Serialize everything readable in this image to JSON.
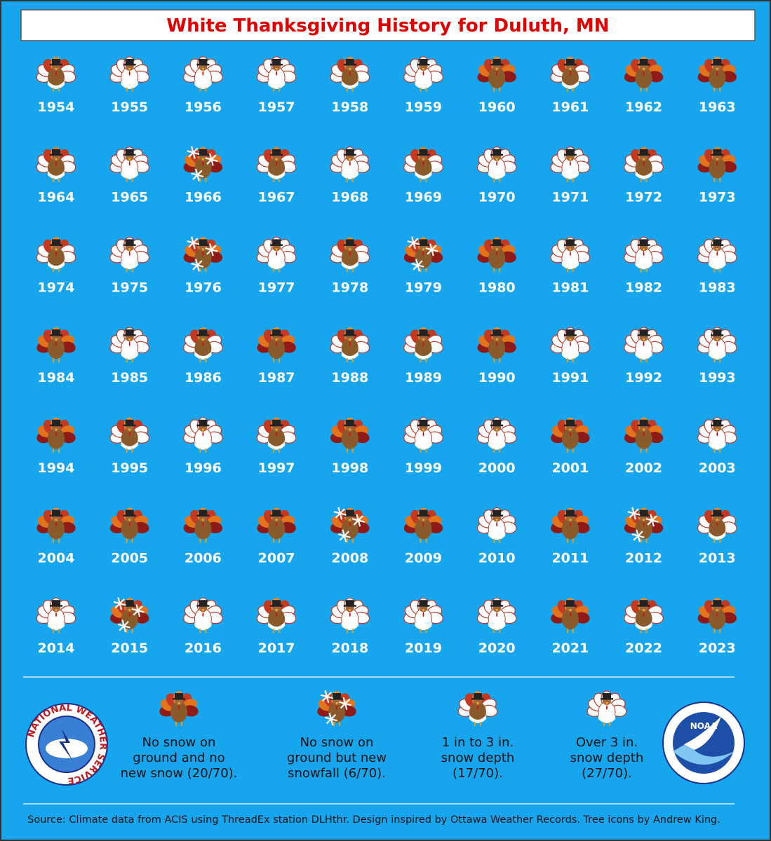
{
  "title": "White Thanksgiving History for Duluth, MN",
  "years": [
    {
      "year": "1954",
      "snow": 2
    },
    {
      "year": "1955",
      "snow": 3
    },
    {
      "year": "1956",
      "snow": 3
    },
    {
      "year": "1957",
      "snow": 3
    },
    {
      "year": "1958",
      "snow": 2
    },
    {
      "year": "1959",
      "snow": 3
    },
    {
      "year": "1960",
      "snow": 0
    },
    {
      "year": "1961",
      "snow": 2
    },
    {
      "year": "1962",
      "snow": 0
    },
    {
      "year": "1963",
      "snow": 0
    },
    {
      "year": "1964",
      "snow": 2
    },
    {
      "year": "1965",
      "snow": 3
    },
    {
      "year": "1966",
      "snow": 1
    },
    {
      "year": "1967",
      "snow": 2
    },
    {
      "year": "1968",
      "snow": 3
    },
    {
      "year": "1969",
      "snow": 2
    },
    {
      "year": "1970",
      "snow": 3
    },
    {
      "year": "1971",
      "snow": 3
    },
    {
      "year": "1972",
      "snow": 2
    },
    {
      "year": "1973",
      "snow": 0
    },
    {
      "year": "1974",
      "snow": 2
    },
    {
      "year": "1975",
      "snow": 3
    },
    {
      "year": "1976",
      "snow": 1
    },
    {
      "year": "1977",
      "snow": 3
    },
    {
      "year": "1978",
      "snow": 2
    },
    {
      "year": "1979",
      "snow": 1
    },
    {
      "year": "1980",
      "snow": 0
    },
    {
      "year": "1981",
      "snow": 3
    },
    {
      "year": "1982",
      "snow": 3
    },
    {
      "year": "1983",
      "snow": 3
    },
    {
      "year": "1984",
      "snow": 0
    },
    {
      "year": "1985",
      "snow": 3
    },
    {
      "year": "1986",
      "snow": 2
    },
    {
      "year": "1987",
      "snow": 0
    },
    {
      "year": "1988",
      "snow": 2
    },
    {
      "year": "1989",
      "snow": 2
    },
    {
      "year": "1990",
      "snow": 0
    },
    {
      "year": "1991",
      "snow": 3
    },
    {
      "year": "1992",
      "snow": 3
    },
    {
      "year": "1993",
      "snow": 3
    },
    {
      "year": "1994",
      "snow": 0
    },
    {
      "year": "1995",
      "snow": 2
    },
    {
      "year": "1996",
      "snow": 3
    },
    {
      "year": "1997",
      "snow": 2
    },
    {
      "year": "1998",
      "snow": 0
    },
    {
      "year": "1999",
      "snow": 3
    },
    {
      "year": "2000",
      "snow": 3
    },
    {
      "year": "2001",
      "snow": 0
    },
    {
      "year": "2002",
      "snow": 0
    },
    {
      "year": "2003",
      "snow": 3
    },
    {
      "year": "2004",
      "snow": 0
    },
    {
      "year": "2005",
      "snow": 0
    },
    {
      "year": "2006",
      "snow": 0
    },
    {
      "year": "2007",
      "snow": 0
    },
    {
      "year": "2008",
      "snow": 1
    },
    {
      "year": "2009",
      "snow": 0
    },
    {
      "year": "2010",
      "snow": 3
    },
    {
      "year": "2011",
      "snow": 0
    },
    {
      "year": "2012",
      "snow": 1
    },
    {
      "year": "2013",
      "snow": 2
    },
    {
      "year": "2014",
      "snow": 3
    },
    {
      "year": "2015",
      "snow": 1
    },
    {
      "year": "2016",
      "snow": 3
    },
    {
      "year": "2017",
      "snow": 2
    },
    {
      "year": "2018",
      "snow": 3
    },
    {
      "year": "2019",
      "snow": 3
    },
    {
      "year": "2020",
      "snow": 3
    },
    {
      "year": "2021",
      "snow": 0
    },
    {
      "year": "2022",
      "snow": 2
    },
    {
      "year": "2023",
      "snow": 0
    }
  ],
  "legend": [
    {
      "lines": [
        "No snow on",
        "ground and no",
        "new snow (20/70)."
      ]
    },
    {
      "lines": [
        "No snow on",
        "ground but new",
        "snowfall (6/70)."
      ]
    },
    {
      "lines": [
        "1 in to 3 in.",
        "snow depth",
        "(17/70)."
      ]
    },
    {
      "lines": [
        "Over 3 in.",
        "snow depth",
        "(27/70)."
      ]
    }
  ],
  "logos": {
    "left": "NATIONAL WEATHER SERVICE",
    "right": "NOAA"
  },
  "source": "Source: Climate data from ACIS using ThreadEx station DLHthr. Design inspired by Ottawa Weather Records. Tree icons by Andrew King."
}
